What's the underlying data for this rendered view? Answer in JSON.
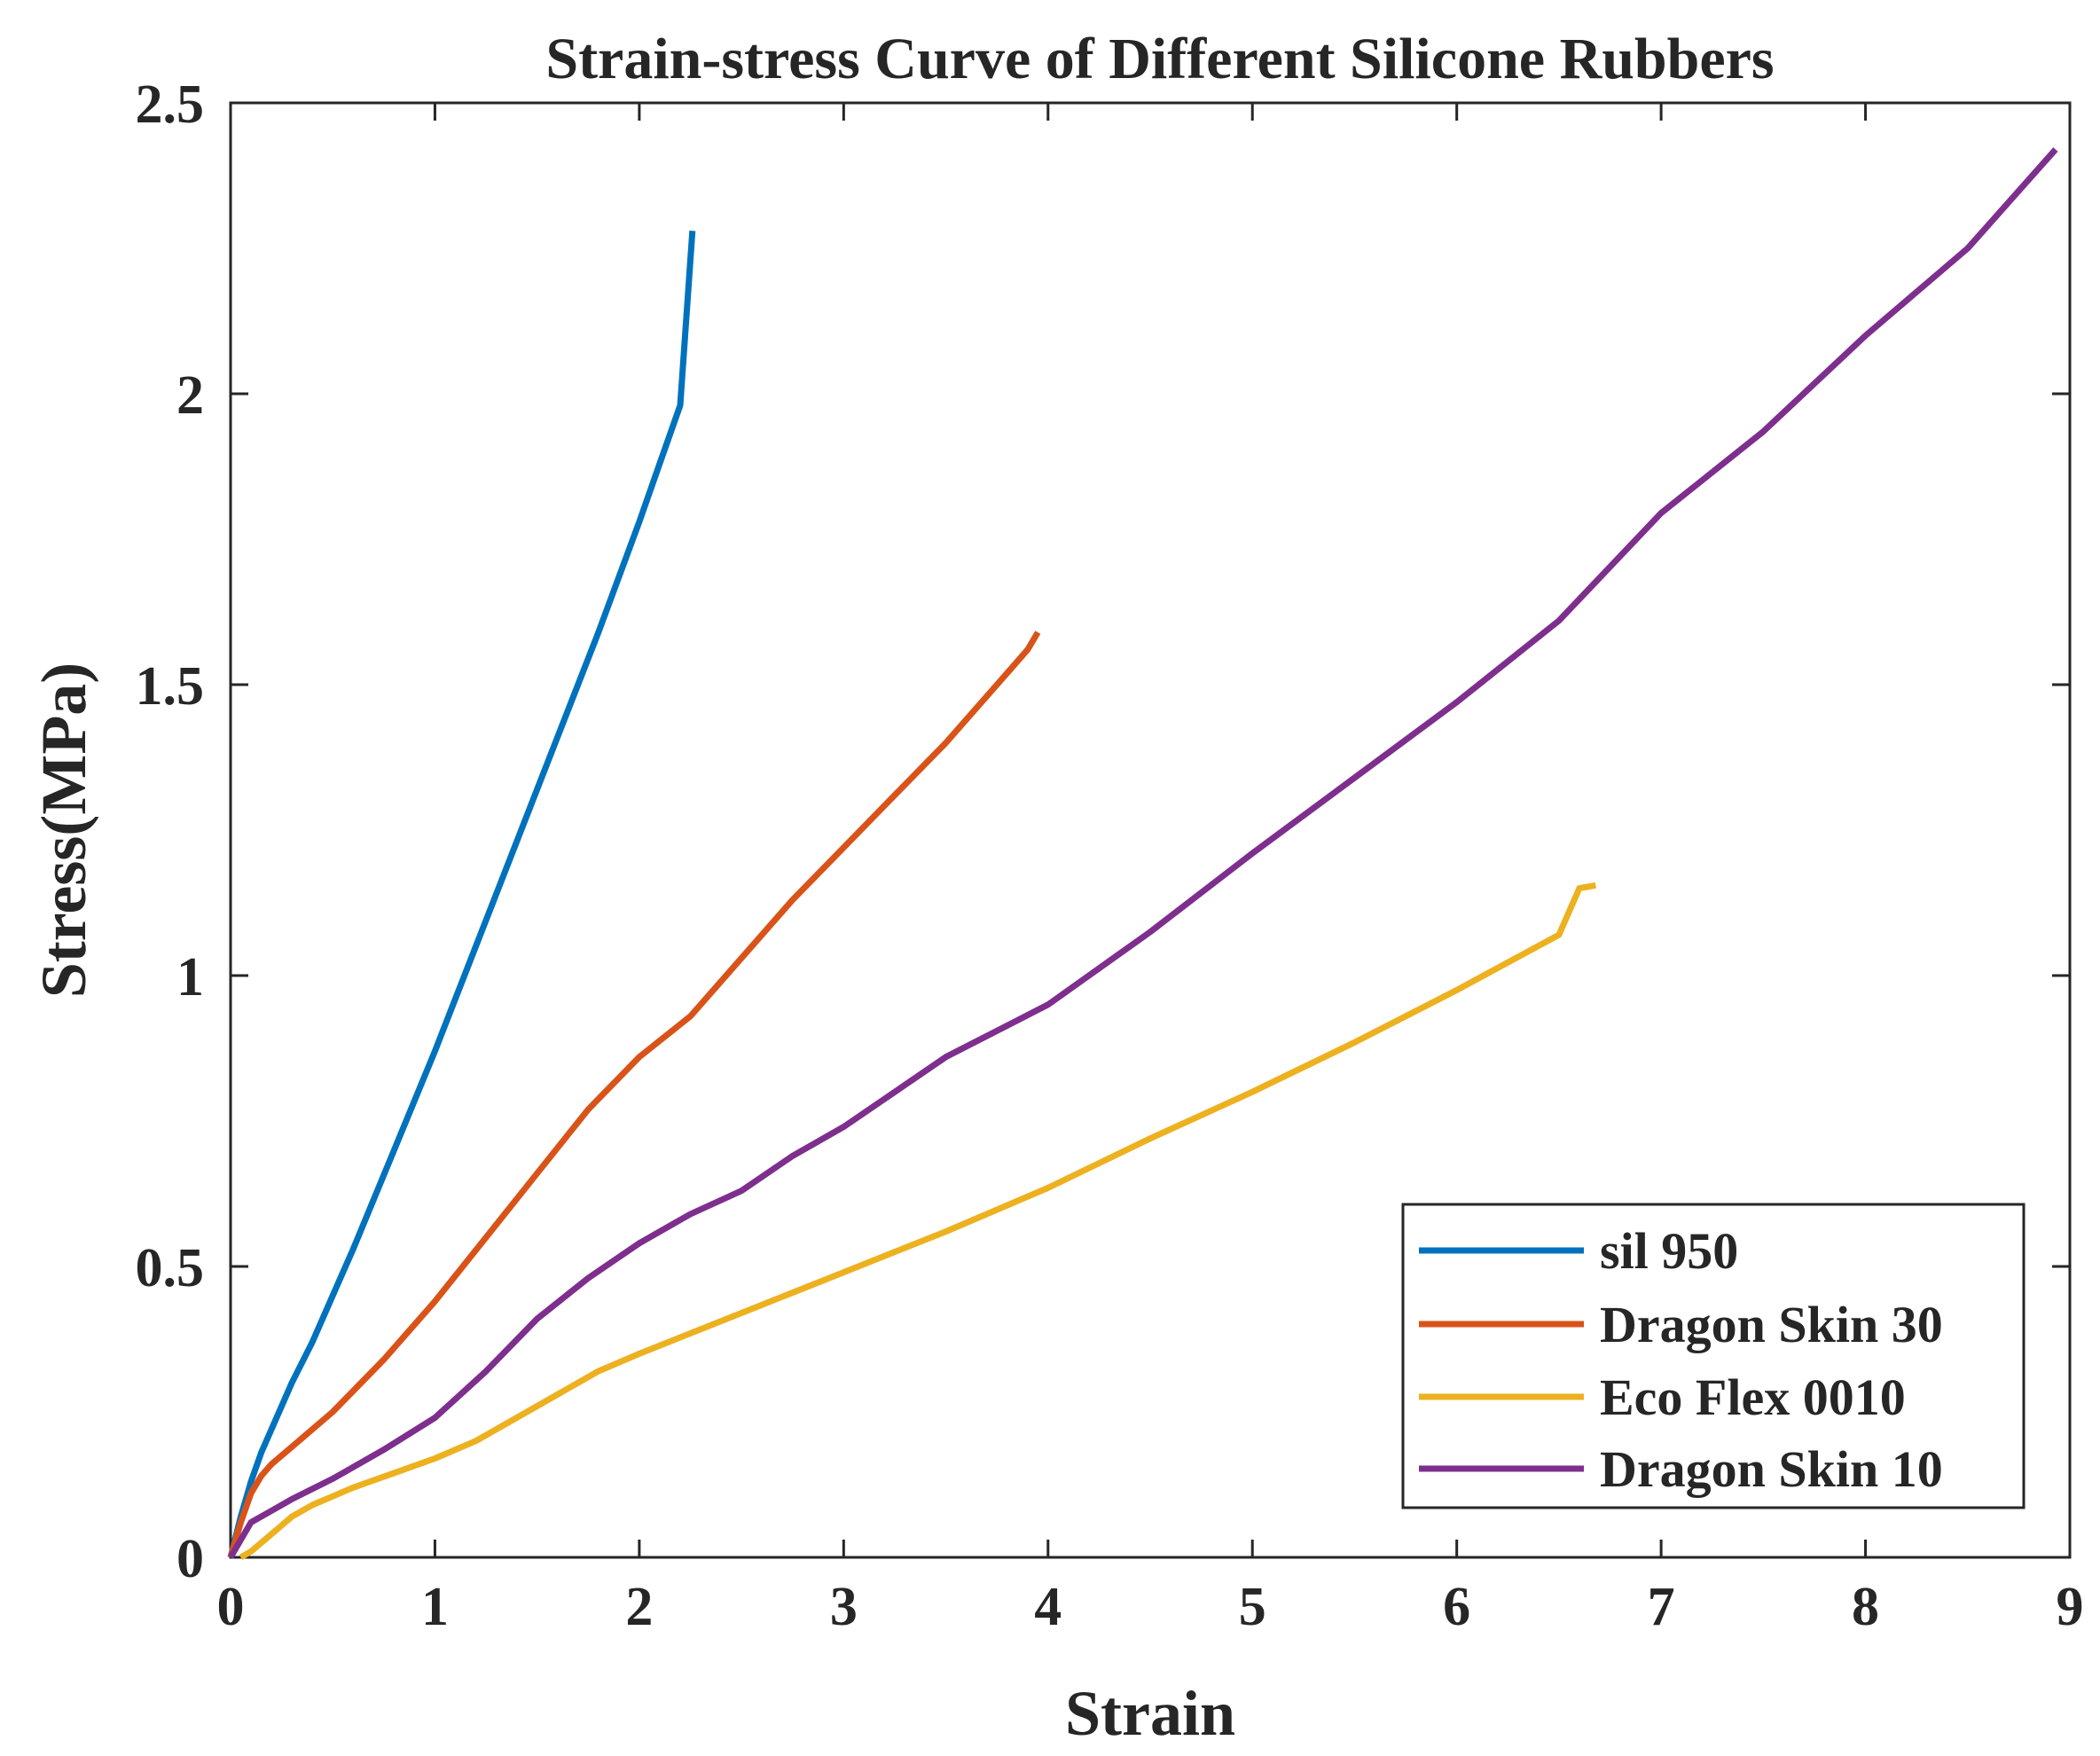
{
  "chart_data": {
    "type": "line",
    "title": "Strain-stress Curve of Different Silicone Rubbers",
    "xlabel": "Strain",
    "ylabel": "Stress(MPa)",
    "xlim": [
      0,
      9
    ],
    "ylim": [
      0,
      2.5
    ],
    "xticks": [
      0,
      1,
      2,
      3,
      4,
      5,
      6,
      7,
      8,
      9
    ],
    "xtick_labels": [
      "0",
      "1",
      "2",
      "3",
      "4",
      "5",
      "6",
      "7",
      "8",
      "9"
    ],
    "yticks": [
      0,
      0.5,
      1,
      1.5,
      2,
      2.5
    ],
    "ytick_labels": [
      "0",
      "0.5",
      "1",
      "1.5",
      "2",
      "2.5"
    ],
    "grid": false,
    "legend_position": "bottom-right",
    "series": [
      {
        "name": "sil 950",
        "color": "#0072BD",
        "x": [
          0,
          0.05,
          0.1,
          0.15,
          0.2,
          0.3,
          0.4,
          0.5,
          0.6,
          0.8,
          1.0,
          1.2,
          1.4,
          1.6,
          1.8,
          2.0,
          2.1,
          2.2,
          2.26
        ],
        "y": [
          0,
          0.07,
          0.13,
          0.18,
          0.22,
          0.3,
          0.37,
          0.45,
          0.53,
          0.7,
          0.87,
          1.05,
          1.23,
          1.41,
          1.59,
          1.78,
          1.88,
          1.98,
          2.28
        ]
      },
      {
        "name": "Dragon Skin 30",
        "color": "#D95319",
        "x": [
          0,
          0.05,
          0.1,
          0.15,
          0.2,
          0.3,
          0.5,
          0.75,
          1.0,
          1.25,
          1.5,
          1.75,
          2.0,
          2.25,
          2.5,
          2.75,
          3.0,
          3.25,
          3.5,
          3.75,
          3.9,
          3.95
        ],
        "y": [
          0,
          0.06,
          0.11,
          0.14,
          0.16,
          0.19,
          0.25,
          0.34,
          0.44,
          0.55,
          0.66,
          0.77,
          0.86,
          0.93,
          1.03,
          1.13,
          1.22,
          1.31,
          1.4,
          1.5,
          1.56,
          1.59
        ]
      },
      {
        "name": "Eco Flex 0010",
        "color": "#EDB120",
        "x": [
          0.05,
          0.1,
          0.2,
          0.3,
          0.4,
          0.6,
          0.8,
          1.0,
          1.2,
          1.5,
          1.8,
          2.0,
          2.5,
          3.0,
          3.5,
          4.0,
          4.5,
          5.0,
          5.5,
          6.0,
          6.5,
          6.6,
          6.68
        ],
        "y": [
          0,
          0.01,
          0.04,
          0.07,
          0.09,
          0.12,
          0.145,
          0.17,
          0.2,
          0.26,
          0.32,
          0.35,
          0.42,
          0.49,
          0.56,
          0.635,
          0.72,
          0.8,
          0.885,
          0.975,
          1.07,
          1.15,
          1.155
        ]
      },
      {
        "name": "Dragon Skin 10",
        "color": "#7E2F8E",
        "x": [
          0,
          0.1,
          0.2,
          0.3,
          0.5,
          0.75,
          1.0,
          1.25,
          1.5,
          1.75,
          2.0,
          2.25,
          2.5,
          2.75,
          3.0,
          3.5,
          4.0,
          4.5,
          5.0,
          5.5,
          6.0,
          6.5,
          7.0,
          7.5,
          8.0,
          8.5,
          8.93
        ],
        "y": [
          0,
          0.06,
          0.08,
          0.1,
          0.135,
          0.185,
          0.24,
          0.32,
          0.41,
          0.48,
          0.54,
          0.59,
          0.63,
          0.69,
          0.74,
          0.86,
          0.95,
          1.075,
          1.21,
          1.34,
          1.47,
          1.61,
          1.795,
          1.935,
          2.1,
          2.25,
          2.42
        ]
      }
    ]
  }
}
